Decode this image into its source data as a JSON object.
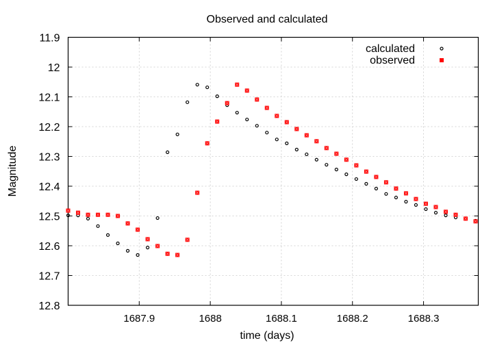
{
  "chart_data": {
    "type": "scatter",
    "title": "Observed and calculated",
    "xlabel": "time (days)",
    "ylabel": "Magnitude",
    "xlim": [
      1687.8,
      1688.377
    ],
    "ylim": [
      12.8,
      11.9
    ],
    "y_inverted": true,
    "grid": true,
    "legend_position": "top-right",
    "x_ticks": [
      1687.9,
      1688,
      1688.1,
      1688.2,
      1688.3
    ],
    "x_tick_labels": [
      "1687.9",
      "1688",
      "1688.1",
      "1688.2",
      "1688.3"
    ],
    "y_ticks": [
      11.9,
      12,
      12.1,
      12.2,
      12.3,
      12.4,
      12.5,
      12.6,
      12.7,
      12.8
    ],
    "y_tick_labels": [
      "11.9",
      "12",
      "12.1",
      "12.2",
      "12.3",
      "12.4",
      "12.5",
      "12.6",
      "12.7",
      "12.8"
    ],
    "x_start": 1687.8,
    "x_step": 0.01398,
    "series": [
      {
        "name": "calculated",
        "marker": "circle",
        "color": "#000000",
        "values": [
          12.498,
          12.498,
          12.509,
          12.534,
          12.564,
          12.592,
          12.617,
          12.631,
          12.606,
          12.507,
          12.286,
          12.226,
          12.118,
          12.059,
          12.068,
          12.098,
          12.128,
          12.153,
          12.176,
          12.197,
          12.22,
          12.243,
          12.256,
          12.277,
          12.293,
          12.311,
          12.328,
          12.344,
          12.36,
          12.376,
          12.392,
          12.408,
          12.426,
          12.438,
          12.452,
          12.463,
          12.477,
          12.489,
          12.498,
          12.505,
          12.509,
          12.516
        ]
      },
      {
        "name": "observed",
        "marker": "cross-box",
        "color": "#ff0000",
        "values": [
          12.482,
          12.489,
          12.496,
          12.496,
          12.496,
          12.5,
          12.525,
          12.546,
          12.578,
          12.601,
          12.627,
          12.631,
          12.58,
          12.422,
          12.256,
          12.183,
          12.121,
          12.059,
          12.079,
          12.109,
          12.137,
          12.164,
          12.185,
          12.208,
          12.229,
          12.249,
          12.272,
          12.291,
          12.311,
          12.33,
          12.351,
          12.369,
          12.387,
          12.408,
          12.424,
          12.443,
          12.459,
          12.47,
          12.486,
          12.496,
          12.509,
          12.518
        ]
      }
    ]
  }
}
